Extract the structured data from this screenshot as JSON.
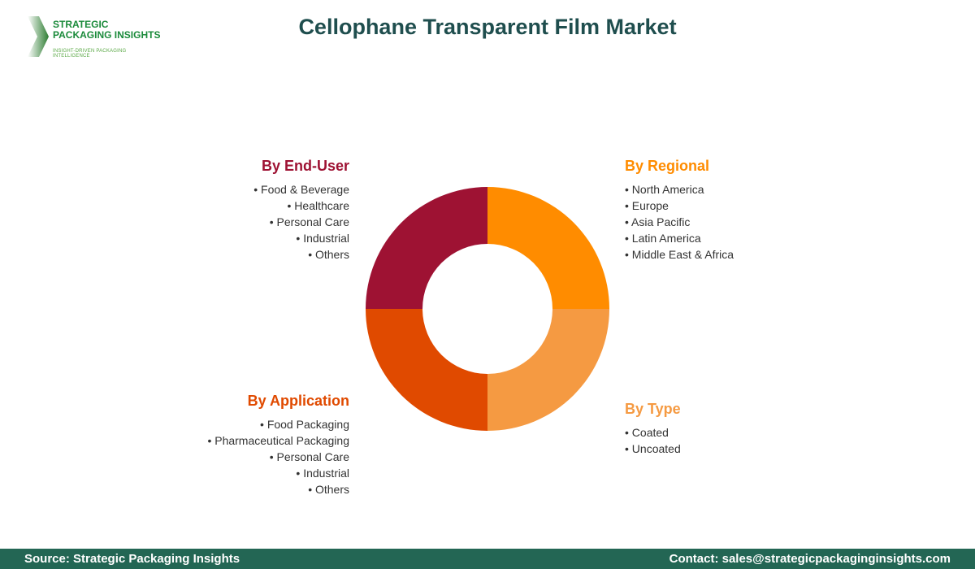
{
  "title": "Cellophane Transparent Film Market",
  "logo": {
    "line1": "STRATEGIC",
    "line2": "PACKAGING INSIGHTS",
    "tagline": "INSIGHT-DRIVEN PACKAGING INTELLIGENCE"
  },
  "segments": [
    {
      "heading": "By Regional",
      "color": "#ff8c00",
      "items": [
        "North America",
        "Europe",
        "Asia Pacific",
        "Latin America",
        "Middle East & Africa"
      ]
    },
    {
      "heading": "By Type",
      "color": "#f59a42",
      "items": [
        "Coated",
        "Uncoated"
      ]
    },
    {
      "heading": "By Application",
      "color": "#e04a00",
      "items": [
        "Food Packaging",
        "Pharmaceutical Packaging",
        "Personal Care",
        "Industrial",
        "Others"
      ]
    },
    {
      "heading": "By End-User",
      "color": "#9e1233",
      "items": [
        "Food & Beverage",
        "Healthcare",
        "Personal Care",
        "Industrial",
        "Others"
      ]
    }
  ],
  "footer": {
    "source": "Source: Strategic Packaging Insights",
    "contact": "Contact: sales@strategicpackaginginsights.com"
  }
}
